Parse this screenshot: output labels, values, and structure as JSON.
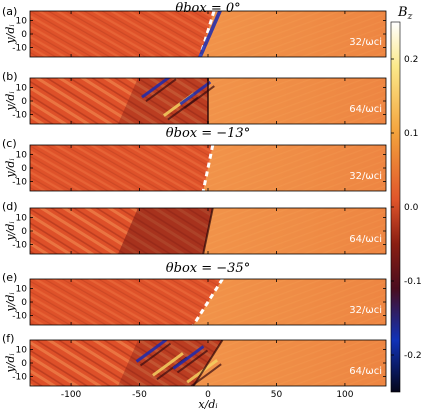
{
  "figure": {
    "xlabel": "x/dᵢ",
    "ylabel": "y/dᵢ",
    "x_ticks": [
      "-100",
      "-50",
      "0",
      "50",
      "100"
    ],
    "y_ticks": [
      "10",
      "0",
      "-10"
    ],
    "colorbar": {
      "title": "B_z",
      "ticks": [
        "0.2",
        "0.1",
        "0.0",
        "-0.1",
        "-0.2"
      ]
    },
    "groups": [
      {
        "title": "θbox = 0°"
      },
      {
        "title": "θbox = −13°"
      },
      {
        "title": "θbox = −35°"
      }
    ],
    "panels": [
      {
        "label": "(a)",
        "time": "32/ωci",
        "shock_angle": 0
      },
      {
        "label": "(b)",
        "time": "64/ωci",
        "shock_angle": 0
      },
      {
        "label": "(c)",
        "time": "32/ωci",
        "shock_angle": -13
      },
      {
        "label": "(d)",
        "time": "64/ωci",
        "shock_angle": -13
      },
      {
        "label": "(e)",
        "time": "32/ωci",
        "shock_angle": -35
      },
      {
        "label": "(f)",
        "time": "64/ωci",
        "shock_angle": -35
      }
    ]
  },
  "colors": {
    "upstream": "#e0552b",
    "downstream": "#f08a40",
    "colormap": [
      "#0a0a2a",
      "#1030c0",
      "#6a1515",
      "#e0552b",
      "#f4a040",
      "#f8e070",
      "#ffffff"
    ]
  }
}
